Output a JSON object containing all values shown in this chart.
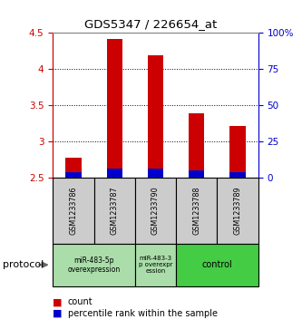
{
  "title": "GDS5347 / 226654_at",
  "samples": [
    "GSM1233786",
    "GSM1233787",
    "GSM1233790",
    "GSM1233788",
    "GSM1233789"
  ],
  "count_values": [
    2.78,
    4.42,
    4.19,
    3.39,
    3.21
  ],
  "percentile_values": [
    2.58,
    2.62,
    2.62,
    2.6,
    2.58
  ],
  "ylim": [
    2.5,
    4.5
  ],
  "yticks": [
    2.5,
    3.0,
    3.5,
    4.0,
    4.5
  ],
  "ytick_labels_left": [
    "2.5",
    "3",
    "3.5",
    "4",
    "4.5"
  ],
  "ytick_labels_right": [
    "0",
    "25",
    "50",
    "75",
    "100%"
  ],
  "bar_width": 0.38,
  "count_color": "#cc0000",
  "percentile_color": "#0000cc",
  "left_axis_color": "#cc0000",
  "right_axis_color": "#0000cc",
  "background_color": "#ffffff",
  "plot_bg_color": "#ffffff",
  "sample_bg_color": "#cccccc",
  "group_bg_light": "#aaddaa",
  "group_bg_dark": "#44cc44",
  "protocol_label": "protocol",
  "legend_count_label": "count",
  "legend_percentile_label": "percentile rank within the sample"
}
